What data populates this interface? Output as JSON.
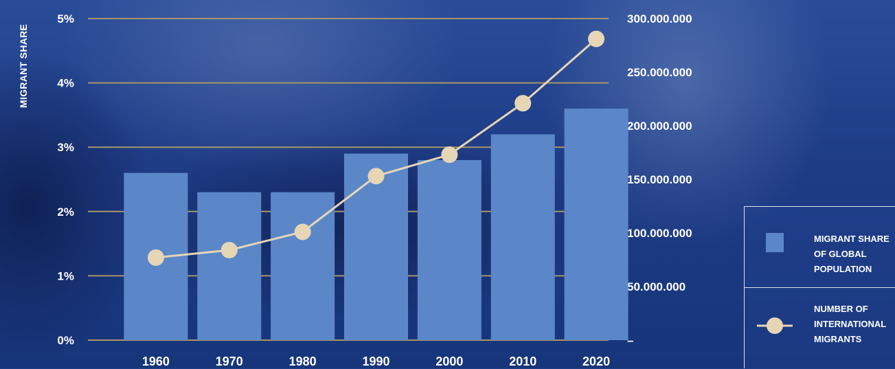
{
  "chart_data": {
    "type": "bar",
    "categories": [
      "1960",
      "1970",
      "1980",
      "1990",
      "2000",
      "2010",
      "2020"
    ],
    "series": [
      {
        "name": "MIGRANT SHARE OF GLOBAL POPULATION",
        "type": "bar",
        "axis": "left",
        "values": [
          2.6,
          2.3,
          2.3,
          2.9,
          2.8,
          3.2,
          3.6
        ]
      },
      {
        "name": "NUMBER OF INTERNATIONAL MIGRANTS",
        "type": "line",
        "axis": "right",
        "values": [
          77000000,
          84000000,
          101000000,
          153000000,
          173000000,
          221000000,
          281000000
        ]
      }
    ],
    "ylabel": "MIGRANT SHARE",
    "ylim": [
      0,
      5
    ],
    "y_ticks": [
      "0%",
      "1%",
      "2%",
      "3%",
      "4%",
      "5%"
    ],
    "y2lim": [
      0,
      300000000
    ],
    "y2_ticks": [
      "–",
      "50.000.000",
      "100.000.000",
      "150.000.000",
      "200.000.000",
      "250.000.000",
      "300.000.000"
    ],
    "grid": true,
    "legend_placement": "bottom-right",
    "colors": {
      "bar": "#5b87c9",
      "line": "#e6d6b6",
      "marker": "#e6d6b6",
      "grid": "#a8956a",
      "background": "#1f3f8a"
    }
  },
  "legend": {
    "bar_label": "MIGRANT SHARE OF GLOBAL POPULATION",
    "line_label": "NUMBER OF INTERNATIONAL MIGRANTS"
  }
}
